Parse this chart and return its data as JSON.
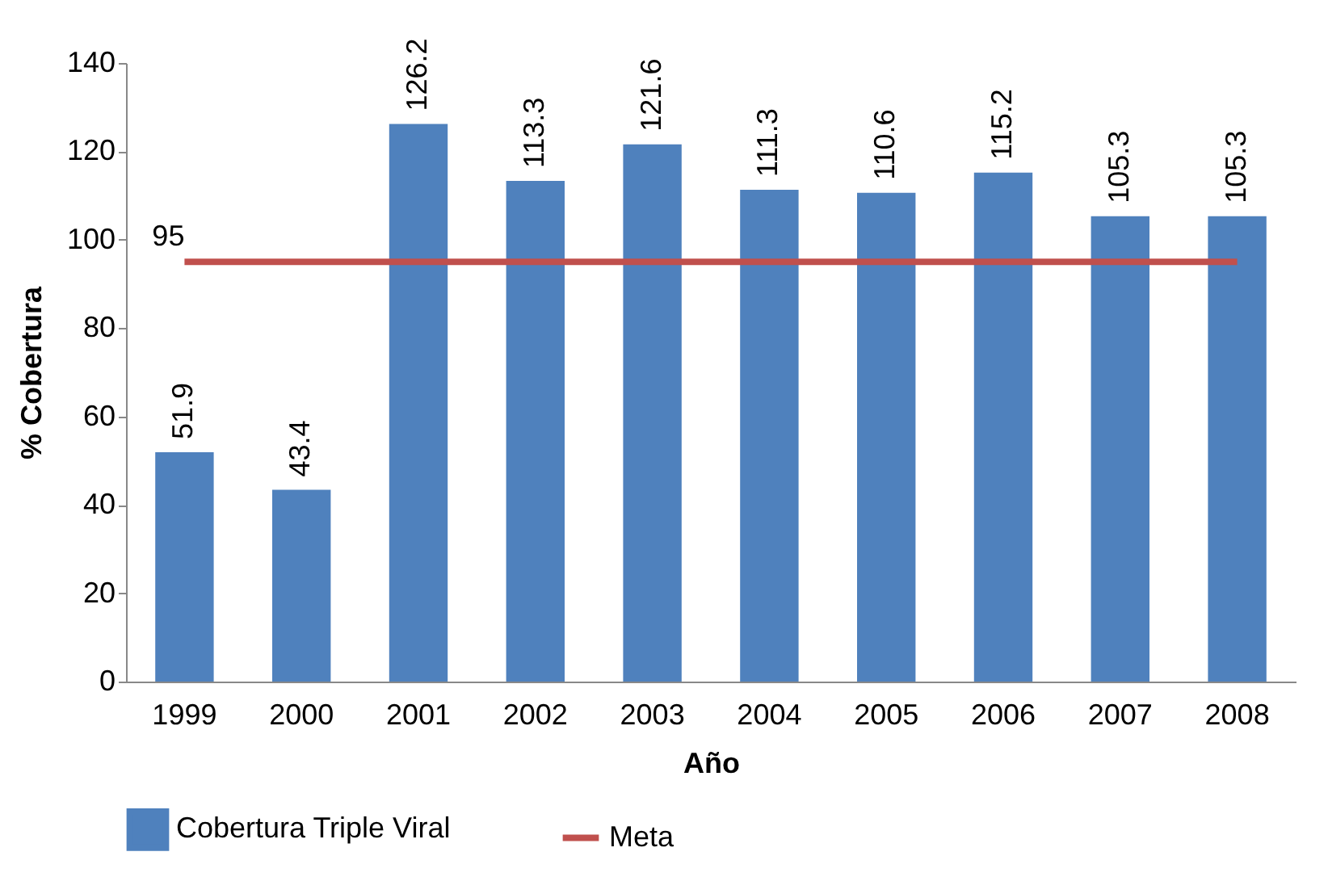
{
  "chart_data": {
    "type": "bar",
    "xlabel": "Año",
    "ylabel": "% Cobertura",
    "categories": [
      "1999",
      "2000",
      "2001",
      "2002",
      "2003",
      "2004",
      "2005",
      "2006",
      "2007",
      "2008"
    ],
    "series": [
      {
        "name": "Cobertura Triple Viral",
        "color": "#4f81bd",
        "values": [
          51.9,
          43.4,
          126.2,
          113.3,
          121.6,
          111.3,
          110.6,
          115.2,
          105.3,
          105.3
        ],
        "value_labels": [
          "51.9",
          "43.4",
          "126.2",
          "113.3",
          "121.6",
          "111.3",
          "110.6",
          "115.2",
          "105.3",
          "105.3"
        ]
      },
      {
        "name": "Meta",
        "type": "line",
        "color": "#c0504d",
        "values": [
          95,
          95,
          95,
          95,
          95,
          95,
          95,
          95,
          95,
          95
        ],
        "value_labels": [
          "95",
          null,
          null,
          null,
          null,
          null,
          null,
          null,
          null,
          null
        ]
      }
    ],
    "ylim": [
      0,
      140
    ],
    "yticks": [
      0,
      20,
      40,
      60,
      80,
      100,
      120,
      140
    ],
    "grid": false,
    "legend": "bottom"
  }
}
